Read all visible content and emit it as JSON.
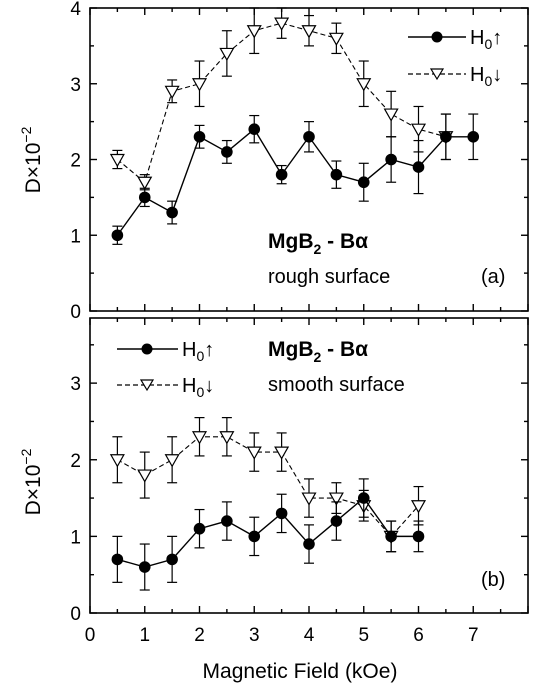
{
  "chart_data": [
    {
      "type": "line",
      "panel_label": "(a)",
      "title_main": "MgB",
      "title_sub": "2",
      "title_rest": " - Bα",
      "annotation": "rough surface",
      "ylabel_main": "D×10",
      "ylabel_exp": "−2",
      "ylim": [
        0,
        4
      ],
      "yticks": [
        "0",
        "1",
        "2",
        "3",
        "4"
      ],
      "xlim": [
        0,
        8
      ],
      "grid": false,
      "legend_position": "top-right",
      "series": [
        {
          "name": "H0↑",
          "label_main": "H",
          "label_sub": "0",
          "label_arrow": "↑",
          "marker": "filled-circle",
          "line_style": "solid",
          "x": [
            0.5,
            1.0,
            1.5,
            2.0,
            2.5,
            3.0,
            3.5,
            4.0,
            4.5,
            5.0,
            5.5,
            6.0,
            6.5,
            7.0
          ],
          "y": [
            1.0,
            1.5,
            1.3,
            2.3,
            2.1,
            2.4,
            1.8,
            2.3,
            1.8,
            1.7,
            2.0,
            1.9,
            2.3,
            2.3
          ],
          "err": [
            0.12,
            0.12,
            0.15,
            0.15,
            0.15,
            0.18,
            0.12,
            0.2,
            0.18,
            0.25,
            0.3,
            0.35,
            0.3,
            0.3
          ]
        },
        {
          "name": "H0↓",
          "label_main": "H",
          "label_sub": "0",
          "label_arrow": "↓",
          "marker": "open-triangle-down",
          "line_style": "dashed",
          "x": [
            0.5,
            1.0,
            1.5,
            2.0,
            2.5,
            3.0,
            3.5,
            4.0,
            4.5,
            5.0,
            5.5,
            6.0,
            6.5
          ],
          "y": [
            2.0,
            1.7,
            2.9,
            3.0,
            3.4,
            3.7,
            3.8,
            3.7,
            3.6,
            3.0,
            2.6,
            2.4,
            2.3
          ],
          "err": [
            0.12,
            0.1,
            0.15,
            0.3,
            0.3,
            0.3,
            0.2,
            0.2,
            0.2,
            0.3,
            0.3,
            0.3,
            0.3
          ]
        }
      ]
    },
    {
      "type": "line",
      "panel_label": "(b)",
      "title_main": "MgB",
      "title_sub": "2",
      "title_rest": " - Bα",
      "annotation": "smooth surface",
      "ylabel_main": "D×10",
      "ylabel_exp": "−2",
      "ylim": [
        0,
        3.85
      ],
      "yticks": [
        "0",
        "1",
        "2",
        "3"
      ],
      "xlim": [
        0,
        8
      ],
      "xticks": [
        "0",
        "1",
        "2",
        "3",
        "4",
        "5",
        "6",
        "7"
      ],
      "xlabel": "Magnetic Field (kOe)",
      "grid": false,
      "legend_position": "top-left",
      "series": [
        {
          "name": "H0↑",
          "label_main": "H",
          "label_sub": "0",
          "label_arrow": "↑",
          "marker": "filled-circle",
          "line_style": "solid",
          "x": [
            0.5,
            1.0,
            1.5,
            2.0,
            2.5,
            3.0,
            3.5,
            4.0,
            4.5,
            5.0,
            5.5,
            6.0
          ],
          "y": [
            0.7,
            0.6,
            0.7,
            1.1,
            1.2,
            1.0,
            1.3,
            0.9,
            1.2,
            1.5,
            1.0,
            1.0
          ],
          "err": [
            0.3,
            0.3,
            0.3,
            0.25,
            0.25,
            0.25,
            0.25,
            0.25,
            0.25,
            0.25,
            0.2,
            0.2
          ]
        },
        {
          "name": "H0↓",
          "label_main": "H",
          "label_sub": "0",
          "label_arrow": "↓",
          "marker": "open-triangle-down",
          "line_style": "dashed",
          "x": [
            0.5,
            1.0,
            1.5,
            2.0,
            2.5,
            3.0,
            3.5,
            4.0,
            4.5,
            5.0,
            5.5,
            6.0
          ],
          "y": [
            2.0,
            1.8,
            2.0,
            2.3,
            2.3,
            2.1,
            2.1,
            1.5,
            1.5,
            1.4,
            1.0,
            1.4
          ],
          "err": [
            0.3,
            0.3,
            0.3,
            0.25,
            0.25,
            0.25,
            0.25,
            0.25,
            0.2,
            0.2,
            0.2,
            0.25
          ]
        }
      ]
    }
  ]
}
